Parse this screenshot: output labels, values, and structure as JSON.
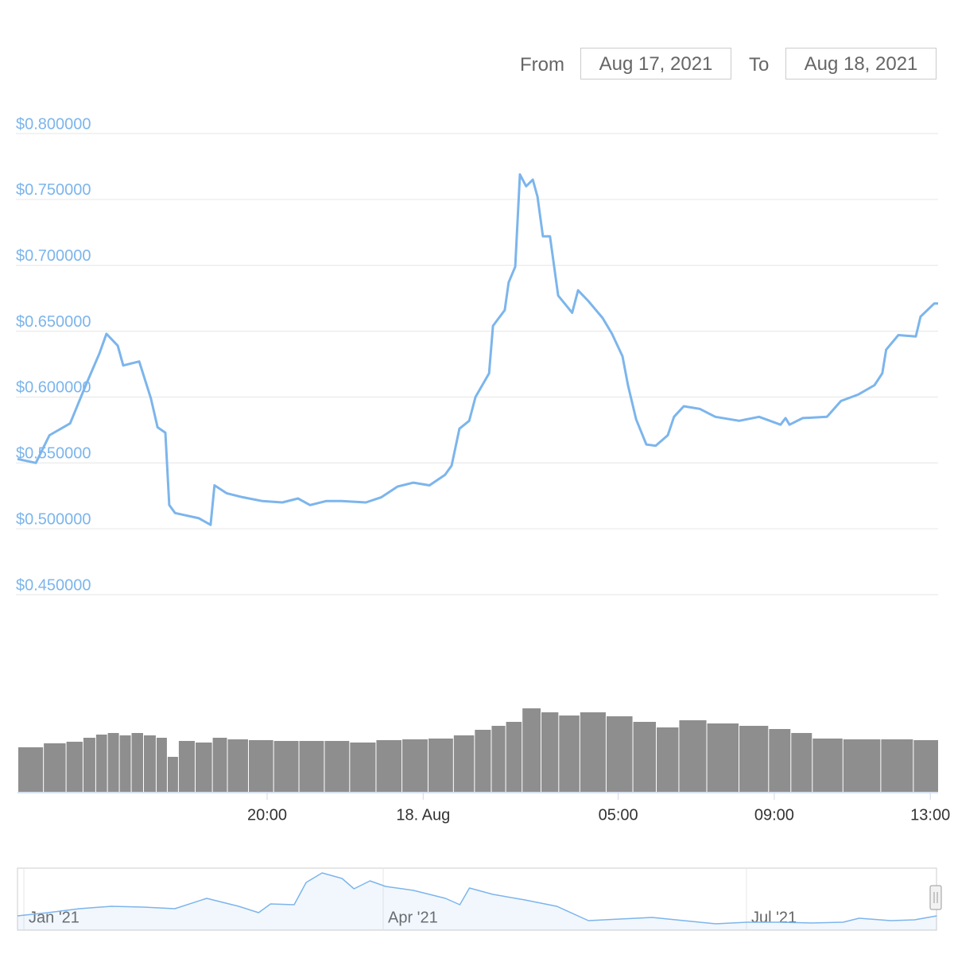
{
  "range_selector": {
    "from_label": "From",
    "from": "Aug 17, 2021",
    "to_label": "To",
    "to": "Aug 18, 2021"
  },
  "chart_data": [
    {
      "type": "line",
      "x": [
        -10.4,
        -9.93,
        -9.58,
        -9.05,
        -8.65,
        -8.3,
        -8.12,
        -7.83,
        -7.69,
        -7.28,
        -6.98,
        -6.81,
        -6.61,
        -6.51,
        -6.36,
        -5.75,
        -5.45,
        -5.35,
        -5.04,
        -4.63,
        -4.12,
        -3.61,
        -3.21,
        -2.9,
        -2.49,
        -2.09,
        -1.47,
        -1.07,
        -0.66,
        -0.25,
        0.16,
        0.56,
        0.73,
        0.93,
        1.18,
        1.34,
        1.69,
        1.79,
        2.09,
        2.19,
        2.36,
        2.48,
        2.64,
        2.81,
        2.93,
        3.07,
        3.25,
        3.46,
        3.82,
        3.97,
        4.23,
        4.6,
        4.84,
        5.11,
        5.25,
        5.46,
        5.72,
        5.96,
        6.27,
        6.43,
        6.68,
        7.09,
        7.49,
        8.1,
        8.61,
        9.16,
        9.29,
        9.39,
        9.73,
        10.35,
        10.71,
        11.16,
        11.57,
        11.77,
        11.87,
        12.18,
        12.63,
        12.75,
        13.1,
        13.2
      ],
      "series": [
        {
          "color": "#7cb5ec",
          "values": [
            0.553,
            0.55,
            0.571,
            0.58,
            0.609,
            0.633,
            0.648,
            0.639,
            0.624,
            0.627,
            0.599,
            0.577,
            0.573,
            0.518,
            0.512,
            0.508,
            0.503,
            0.533,
            0.527,
            0.524,
            0.521,
            0.52,
            0.523,
            0.518,
            0.521,
            0.521,
            0.52,
            0.524,
            0.532,
            0.535,
            0.533,
            0.541,
            0.548,
            0.576,
            0.582,
            0.6,
            0.618,
            0.654,
            0.666,
            0.687,
            0.699,
            0.769,
            0.76,
            0.765,
            0.752,
            0.722,
            0.722,
            0.677,
            0.664,
            0.681,
            0.673,
            0.66,
            0.648,
            0.631,
            0.609,
            0.583,
            0.564,
            0.563,
            0.571,
            0.585,
            0.593,
            0.591,
            0.585,
            0.582,
            0.585,
            0.579,
            0.584,
            0.579,
            0.584,
            0.585,
            0.597,
            0.602,
            0.609,
            0.618,
            0.636,
            0.647,
            0.646,
            0.661,
            0.671,
            0.671
          ]
        }
      ],
      "xlim": [
        -10.4,
        13.2
      ],
      "xticks": [
        {
          "value": -4,
          "label": "20:00"
        },
        {
          "value": 0,
          "label": "18. Aug"
        },
        {
          "value": 5,
          "label": "05:00"
        },
        {
          "value": 9,
          "label": "09:00"
        },
        {
          "value": 13,
          "label": "13:00"
        }
      ],
      "ylim": [
        0.45,
        0.8
      ],
      "yticks": [
        {
          "value": 0.8,
          "label": "$0.800000"
        },
        {
          "value": 0.75,
          "label": "$0.750000"
        },
        {
          "value": 0.7,
          "label": "$0.700000"
        },
        {
          "value": 0.65,
          "label": "$0.650000"
        },
        {
          "value": 0.6,
          "label": "$0.600000"
        },
        {
          "value": 0.55,
          "label": "$0.550000"
        },
        {
          "value": 0.5,
          "label": "$0.500000"
        },
        {
          "value": 0.45,
          "label": "$0.450000"
        }
      ],
      "grid": true
    },
    {
      "type": "bar",
      "x": [
        -10.07,
        -9.42,
        -8.91,
        -8.55,
        -8.26,
        -7.95,
        -7.65,
        -7.34,
        -7.02,
        -6.69,
        -6.45,
        -6.12,
        -5.59,
        -5.24,
        -4.82,
        -4.16,
        -3.53,
        -2.86,
        -2.23,
        -1.56,
        -0.88,
        -0.23,
        0.46,
        1.07,
        1.54,
        1.93,
        2.28,
        2.77,
        3.25,
        3.68,
        4.33,
        5.03,
        5.7,
        6.23,
        6.86,
        7.66,
        8.51,
        9.18,
        9.65,
        10.28,
        11.22,
        12.22,
        12.89
      ],
      "values": [
        56,
        61,
        63,
        68,
        72,
        74,
        71,
        74,
        71,
        68,
        44,
        64,
        62,
        68,
        66,
        65,
        64,
        64,
        64,
        62,
        65,
        66,
        67,
        71,
        78,
        83,
        88,
        105,
        100,
        96,
        100,
        95,
        88,
        81,
        90,
        86,
        83,
        79,
        74,
        67,
        66,
        66,
        65
      ],
      "color": "#8e8e8e",
      "xlim": [
        -10.4,
        13.2
      ]
    },
    {
      "type": "line",
      "x": [
        -1.6,
        6,
        13.9,
        21.9,
        29.9,
        37.8,
        45.8,
        53.8,
        58.8,
        61.8,
        67.7,
        70.7,
        74.7,
        79.7,
        82.7,
        86.7,
        90.6,
        97.6,
        105.6,
        109.2,
        111.6,
        117.5,
        125.5,
        133.5,
        141.4,
        149.4,
        157.4,
        165.3,
        173.3,
        181.3,
        189.2,
        197.2,
        205.2,
        209.2,
        217.1,
        223.1,
        228.7
      ],
      "values": [
        18,
        22,
        27,
        30,
        29,
        27,
        40,
        30,
        22,
        33,
        32,
        60,
        72,
        65,
        52,
        62,
        55,
        50,
        40,
        32,
        53,
        45,
        38,
        30,
        12,
        14,
        16,
        12,
        8,
        10,
        10,
        9,
        10,
        15,
        12,
        13,
        18
      ],
      "color": "#7cb5ec",
      "xlim": [
        -1.6,
        229
      ],
      "xticks": [
        {
          "value": 0,
          "label": "Jan '21"
        },
        {
          "value": 90,
          "label": "Apr '21"
        },
        {
          "value": 181,
          "label": "Jul '21"
        }
      ]
    }
  ]
}
